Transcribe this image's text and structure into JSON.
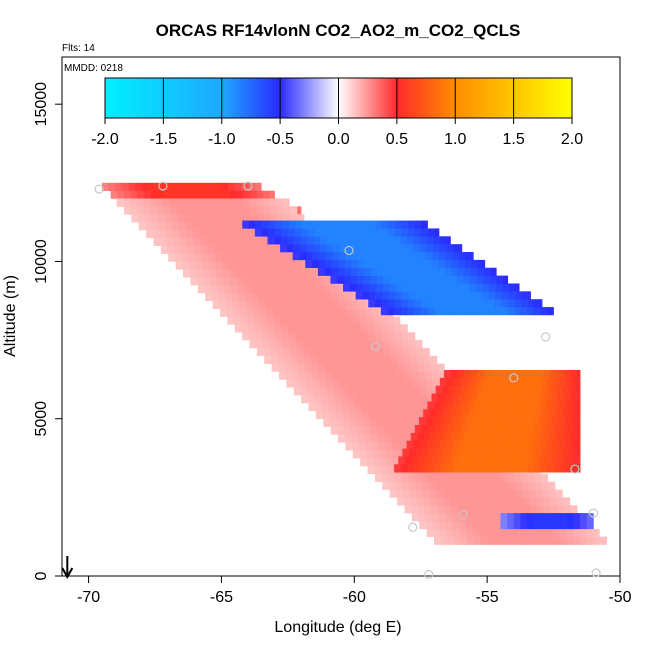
{
  "chart_data": {
    "type": "heatmap",
    "title": "ORCAS RF14vlonN CO2_AO2_m_CO2_QCLS",
    "flights_label": "Flts: 14",
    "date_label": "MMDD: 0218",
    "xlabel": "Longitude (deg E)",
    "ylabel": "Altitude (m)",
    "xlim": [
      -71,
      -50
    ],
    "ylim": [
      0,
      16500
    ],
    "x_ticks": [
      -70,
      -65,
      -60,
      -55,
      -50
    ],
    "x_tick_labels": [
      "-70",
      "-65",
      "-60",
      "-55",
      "-50"
    ],
    "y_ticks": [
      0,
      5000,
      10000,
      15000
    ],
    "y_tick_labels": [
      "0",
      "5000",
      "10000",
      "15000"
    ],
    "colorbar": {
      "range": [
        -2.0,
        2.0
      ],
      "ticks": [
        -2.0,
        -1.5,
        -1.0,
        -0.5,
        0.0,
        0.5,
        1.0,
        1.5,
        2.0
      ],
      "tick_labels": [
        "-2.0",
        "-1.5",
        "-1.0",
        "-0.5",
        "0.0",
        "0.5",
        "1.0",
        "1.5",
        "2.0"
      ],
      "colors": [
        "#00f0ff",
        "#1ea8ff",
        "#2a2aff",
        "#ffffff",
        "#ff2a2a",
        "#ff8c00",
        "#ffff00"
      ]
    },
    "regions": [
      {
        "name": "upper-red-band",
        "value": 0.55,
        "lon_top_start": -69.7,
        "lon_top_end": -63.8,
        "alt_top": 12400,
        "lon_bottom_start": -68.5,
        "lon_bottom_end": -62.0,
        "alt_bottom": 11500
      },
      {
        "name": "main-pink-wedge",
        "value": 0.25,
        "lon_top_start": -69.0,
        "lon_top_end": -62.5,
        "alt_top": 11800,
        "lon_bottom_start": -57.0,
        "lon_bottom_end": -50.5,
        "alt_bottom": 1000
      },
      {
        "name": "negative-band",
        "value": -0.85,
        "lon_top_start": -64.5,
        "lon_top_end": -57.5,
        "alt_top": 11200,
        "lon_bottom_start": -59.0,
        "lon_bottom_end": -52.5,
        "alt_bottom": 8300
      },
      {
        "name": "lower-red-core",
        "value": 0.85,
        "lon_top_start": -56.5,
        "lon_top_end": -51.5,
        "alt_top": 6500,
        "lon_bottom_start": -58.5,
        "lon_bottom_end": -51.5,
        "alt_bottom": 3300
      },
      {
        "name": "low-level-blue",
        "value": -0.55,
        "lon_top_start": -54.5,
        "lon_top_end": -51.0,
        "alt_top": 2000,
        "lon_bottom_start": -54.5,
        "lon_bottom_end": -51.0,
        "alt_bottom": 1500
      }
    ],
    "sample_points": [
      {
        "lon": -67.2,
        "alt": 12400
      },
      {
        "lon": -64.0,
        "alt": 12400
      },
      {
        "lon": -69.6,
        "alt": 12300
      },
      {
        "lon": -60.2,
        "alt": 10350
      },
      {
        "lon": -59.2,
        "alt": 7300
      },
      {
        "lon": -52.8,
        "alt": 7600
      },
      {
        "lon": -54.0,
        "alt": 6300
      },
      {
        "lon": -51.7,
        "alt": 3400
      },
      {
        "lon": -55.9,
        "alt": 1950
      },
      {
        "lon": -57.8,
        "alt": 1550
      },
      {
        "lon": -51.0,
        "alt": 2000
      },
      {
        "lon": -57.2,
        "alt": 50
      },
      {
        "lon": -50.9,
        "alt": 100
      }
    ],
    "marker_lon": -70.8
  }
}
